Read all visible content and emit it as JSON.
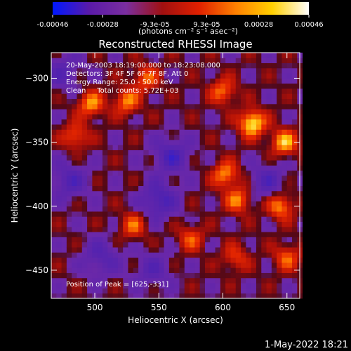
{
  "chart_data": {
    "type": "heatmap",
    "title": "Reconstructed RHESSI Image",
    "xlabel": "Heliocentric X (arcsec)",
    "ylabel": "Heliocentric Y (arcsec)",
    "xlim": [
      466,
      660
    ],
    "ylim": [
      -472,
      -280
    ],
    "x_ticks": [
      500,
      550,
      600,
      650
    ],
    "y_ticks": [
      -300,
      -350,
      -400,
      -450
    ],
    "colorbar": {
      "min": -0.00046,
      "max": 0.00046,
      "tick_values": [
        -0.00046,
        -0.00028,
        -9.3e-05,
        9.3e-05,
        0.00028,
        0.00046
      ],
      "tick_labels": [
        "-0.00046",
        "-0.00028",
        "-9.3e-05",
        "9.3e-05",
        "0.00028",
        "0.00046"
      ],
      "unit_label": "(photons cm⁻² s⁻¹ asec⁻²)",
      "colors": [
        "#0018ff",
        "#5a1aa8",
        "#7a2ea0",
        "#a01010",
        "#e02000",
        "#ff8000",
        "#ffd000",
        "#ffffff"
      ]
    },
    "annotations": [
      "20-May-2003 18:19:00.000 to 18:23:08.000",
      "Detectors: 3F 4F 5F 6F 7F 8F, Att 0",
      "Energy Range: 25.0 - 50.0 keV",
      "Clean     Total counts: 5.72E+03"
    ],
    "peak_label": "Position of Peak = [625,-331]",
    "peak": [
      625,
      -331
    ],
    "bright_sources": [
      {
        "x": 623,
        "y": -335,
        "level": 1.0
      },
      {
        "x": 648,
        "y": -350,
        "level": 0.8
      },
      {
        "x": 497,
        "y": -320,
        "level": 0.7
      },
      {
        "x": 525,
        "y": -318,
        "level": 0.65
      },
      {
        "x": 600,
        "y": -310,
        "level": 0.6
      },
      {
        "x": 540,
        "y": -300,
        "level": 0.55
      },
      {
        "x": 602,
        "y": -375,
        "level": 0.7
      },
      {
        "x": 645,
        "y": -400,
        "level": 0.7
      },
      {
        "x": 612,
        "y": -395,
        "level": 0.65
      },
      {
        "x": 485,
        "y": -345,
        "level": 0.55
      },
      {
        "x": 530,
        "y": -415,
        "level": 0.55
      },
      {
        "x": 575,
        "y": -425,
        "level": 0.5
      },
      {
        "x": 650,
        "y": -440,
        "level": 0.55
      },
      {
        "x": 610,
        "y": -440,
        "level": 0.45
      }
    ],
    "dim_regions": [
      {
        "x": 550,
        "y": -395,
        "level": -0.55
      },
      {
        "x": 560,
        "y": -360,
        "level": -0.5
      },
      {
        "x": 480,
        "y": -380,
        "level": -0.45
      },
      {
        "x": 505,
        "y": -440,
        "level": -0.4
      },
      {
        "x": 545,
        "y": -450,
        "level": -0.35
      },
      {
        "x": 635,
        "y": -380,
        "level": -0.4
      },
      {
        "x": 475,
        "y": -295,
        "level": -0.35
      }
    ]
  },
  "footer": {
    "timestamp": "1-May-2022 18:21"
  }
}
